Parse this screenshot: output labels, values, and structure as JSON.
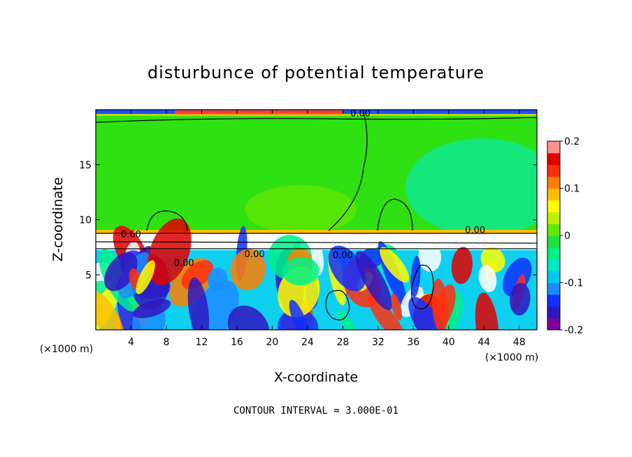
{
  "chart_data": {
    "type": "heatmap",
    "title": "disturbunce of potential temperature",
    "xlabel": "X-coordinate",
    "ylabel": "Z-coordinate",
    "x_unit_left": "(×1000 m)",
    "x_unit_right": "(×1000 m)",
    "xlim": [
      0,
      50
    ],
    "ylim": [
      0,
      20
    ],
    "x_ticks": [
      "4",
      "8",
      "12",
      "16",
      "20",
      "24",
      "28",
      "32",
      "36",
      "40",
      "44",
      "48"
    ],
    "x_tick_values": [
      4,
      8,
      12,
      16,
      20,
      24,
      28,
      32,
      36,
      40,
      44,
      48
    ],
    "y_ticks": [
      "5",
      "10",
      "15"
    ],
    "y_tick_values": [
      5,
      10,
      15
    ],
    "colorbar": {
      "range": [
        -0.2,
        0.2
      ],
      "tick_labels": [
        "0.2",
        "0.1",
        "0",
        "-0.1",
        "-0.2"
      ],
      "tick_values": [
        0.2,
        0.1,
        0,
        -0.1,
        -0.2
      ],
      "colors": [
        "#8000a0",
        "#3018c0",
        "#1030ff",
        "#1c8cff",
        "#00c8f0",
        "#00e8c8",
        "#00f088",
        "#20e040",
        "#60e800",
        "#c0f000",
        "#ffff00",
        "#ffc000",
        "#ff8000",
        "#ff3010",
        "#e00000",
        "#ff9090"
      ]
    },
    "contour_labels": [
      {
        "text": "0.00",
        "x": 30,
        "z": 19.4
      },
      {
        "text": "0.60",
        "x": 4,
        "z": 8.4
      },
      {
        "text": "0.00",
        "x": 10,
        "z": 5.8
      },
      {
        "text": "0.00",
        "x": 18,
        "z": 6.6
      },
      {
        "text": "0.00",
        "x": 28,
        "z": 6.5
      },
      {
        "text": "0.00",
        "x": 43,
        "z": 8.8
      }
    ],
    "contour_interval_note": "CONTOUR INTERVAL = 3.000E-01"
  }
}
